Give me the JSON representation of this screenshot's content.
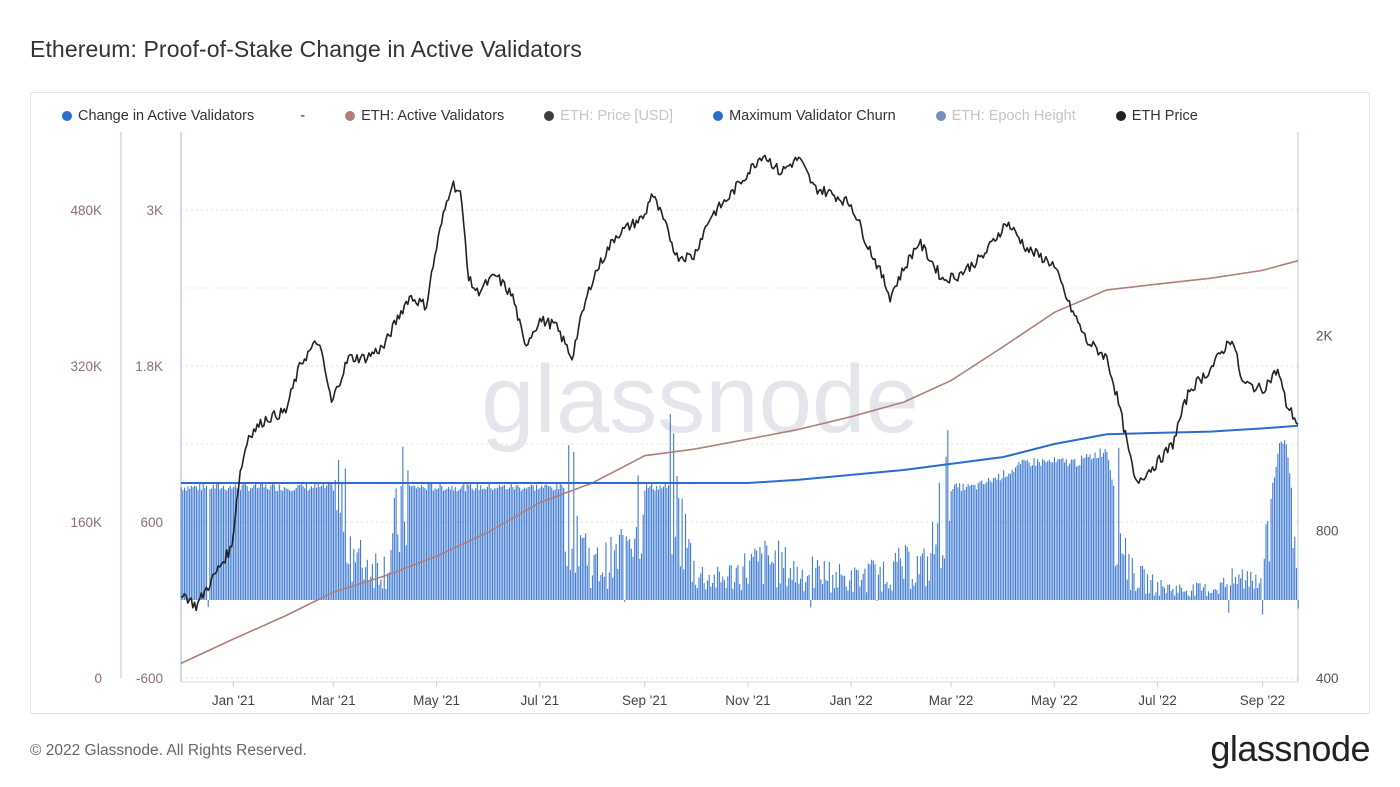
{
  "page": {
    "title": "Ethereum: Proof-of-Stake Change in Active Validators",
    "footer": "© 2022 Glassnode. All Rights Reserved.",
    "brand": "glassnode",
    "watermark": "glassnode"
  },
  "legend": [
    {
      "label": "Change in Active Validators",
      "color": "#2a6ccf",
      "muted": false,
      "icon": "dot"
    },
    {
      "label": "-",
      "color": "",
      "muted": false,
      "icon": "none"
    },
    {
      "label": "ETH: Active Validators",
      "color": "#b07f7a",
      "muted": false,
      "icon": "dot"
    },
    {
      "label": "ETH: Price [USD]",
      "color": "#333333",
      "muted": true,
      "icon": "dot"
    },
    {
      "label": "Maximum Validator Churn",
      "color": "#2a6ccf",
      "muted": false,
      "icon": "dot"
    },
    {
      "label": "ETH: Epoch Height",
      "color": "#6e89b6",
      "muted": true,
      "icon": "dot"
    },
    {
      "label": "ETH Price",
      "color": "#222222",
      "muted": false,
      "icon": "dot"
    }
  ],
  "chart_data": {
    "type": "line",
    "x_range": [
      "2020-12-01",
      "2022-09-22"
    ],
    "x_ticks": [
      "Jan '21",
      "Mar '21",
      "May '21",
      "Jul '21",
      "Sep '21",
      "Nov '21",
      "Jan '22",
      "Mar '22",
      "May '22",
      "Jul '22",
      "Sep '22"
    ],
    "axes": {
      "validators_axis": {
        "ticks": [
          "0",
          "160K",
          "320K",
          "480K"
        ],
        "tick_values": [
          0,
          160000,
          320000,
          480000
        ],
        "range": [
          0,
          560000
        ]
      },
      "change_axis": {
        "ticks": [
          "-600",
          "600",
          "1.8K",
          "3K"
        ],
        "tick_values": [
          -600,
          600,
          1800,
          3000
        ],
        "range": [
          -600,
          3600
        ]
      },
      "price_axis": {
        "ticks": [
          "400",
          "800",
          "2K"
        ],
        "tick_values": [
          400,
          800,
          2000
        ],
        "scale": "log",
        "range": [
          400,
          5200
        ]
      }
    },
    "series": [
      {
        "name": "ETH: Active Validators",
        "color": "#b07f7a",
        "axis": "validators_axis",
        "points": [
          [
            "2020-12-01",
            15000
          ],
          [
            "2021-01-01",
            40000
          ],
          [
            "2021-02-01",
            64000
          ],
          [
            "2021-03-01",
            88000
          ],
          [
            "2021-04-01",
            105000
          ],
          [
            "2021-05-01",
            125000
          ],
          [
            "2021-06-01",
            150000
          ],
          [
            "2021-07-01",
            180000
          ],
          [
            "2021-08-01",
            200000
          ],
          [
            "2021-09-01",
            228000
          ],
          [
            "2021-10-01",
            235000
          ],
          [
            "2021-11-01",
            245000
          ],
          [
            "2021-12-01",
            255000
          ],
          [
            "2022-01-01",
            268000
          ],
          [
            "2022-02-01",
            283000
          ],
          [
            "2022-03-01",
            305000
          ],
          [
            "2022-04-01",
            340000
          ],
          [
            "2022-05-01",
            375000
          ],
          [
            "2022-06-01",
            398000
          ],
          [
            "2022-07-01",
            404000
          ],
          [
            "2022-08-01",
            410000
          ],
          [
            "2022-09-01",
            418000
          ],
          [
            "2022-09-22",
            428000
          ]
        ]
      },
      {
        "name": "Maximum Validator Churn",
        "color": "#2a6ccf",
        "axis": "change_axis",
        "points": [
          [
            "2020-12-01",
            900
          ],
          [
            "2021-11-01",
            900
          ],
          [
            "2021-12-01",
            925
          ],
          [
            "2022-02-01",
            1000
          ],
          [
            "2022-04-01",
            1100
          ],
          [
            "2022-05-01",
            1200
          ],
          [
            "2022-06-01",
            1275
          ],
          [
            "2022-07-01",
            1285
          ],
          [
            "2022-08-01",
            1295
          ],
          [
            "2022-09-01",
            1320
          ],
          [
            "2022-09-22",
            1340
          ]
        ]
      },
      {
        "name": "ETH Price",
        "color": "#222222",
        "axis": "price_axis",
        "points": [
          [
            "2020-12-01",
            600
          ],
          [
            "2020-12-10",
            560
          ],
          [
            "2020-12-20",
            640
          ],
          [
            "2020-12-31",
            740
          ],
          [
            "2021-01-05",
            1050
          ],
          [
            "2021-01-10",
            1250
          ],
          [
            "2021-01-20",
            1350
          ],
          [
            "2021-02-01",
            1400
          ],
          [
            "2021-02-10",
            1760
          ],
          [
            "2021-02-20",
            1950
          ],
          [
            "2021-02-28",
            1450
          ],
          [
            "2021-03-10",
            1800
          ],
          [
            "2021-03-20",
            1800
          ],
          [
            "2021-03-31",
            1900
          ],
          [
            "2021-04-15",
            2400
          ],
          [
            "2021-04-25",
            2300
          ],
          [
            "2021-05-10",
            4100
          ],
          [
            "2021-05-15",
            3900
          ],
          [
            "2021-05-20",
            2600
          ],
          [
            "2021-05-25",
            2450
          ],
          [
            "2021-06-05",
            2650
          ],
          [
            "2021-06-15",
            2400
          ],
          [
            "2021-06-22",
            1900
          ],
          [
            "2021-07-01",
            2150
          ],
          [
            "2021-07-10",
            2100
          ],
          [
            "2021-07-20",
            1800
          ],
          [
            "2021-08-01",
            2600
          ],
          [
            "2021-08-15",
            3200
          ],
          [
            "2021-09-01",
            3500
          ],
          [
            "2021-09-05",
            3900
          ],
          [
            "2021-09-20",
            2900
          ],
          [
            "2021-09-30",
            2900
          ],
          [
            "2021-10-10",
            3500
          ],
          [
            "2021-10-20",
            3800
          ],
          [
            "2021-11-01",
            4300
          ],
          [
            "2021-11-10",
            4700
          ],
          [
            "2021-11-20",
            4300
          ],
          [
            "2021-12-01",
            4600
          ],
          [
            "2021-12-10",
            4000
          ],
          [
            "2021-12-20",
            3900
          ],
          [
            "2022-01-01",
            3700
          ],
          [
            "2022-01-10",
            3100
          ],
          [
            "2022-01-24",
            2400
          ],
          [
            "2022-02-10",
            3100
          ],
          [
            "2022-02-24",
            2600
          ],
          [
            "2022-03-05",
            2650
          ],
          [
            "2022-03-20",
            2900
          ],
          [
            "2022-04-03",
            3400
          ],
          [
            "2022-04-15",
            3000
          ],
          [
            "2022-04-30",
            2800
          ],
          [
            "2022-05-10",
            2300
          ],
          [
            "2022-05-20",
            1950
          ],
          [
            "2022-06-01",
            1800
          ],
          [
            "2022-06-13",
            1200
          ],
          [
            "2022-06-18",
            1000
          ],
          [
            "2022-07-01",
            1100
          ],
          [
            "2022-07-10",
            1200
          ],
          [
            "2022-07-20",
            1550
          ],
          [
            "2022-08-01",
            1700
          ],
          [
            "2022-08-14",
            1980
          ],
          [
            "2022-08-20",
            1600
          ],
          [
            "2022-09-01",
            1550
          ],
          [
            "2022-09-10",
            1700
          ],
          [
            "2022-09-15",
            1450
          ],
          [
            "2022-09-22",
            1320
          ]
        ]
      },
      {
        "name": "Change in Active Validators",
        "color": "#2a6ccf",
        "axis": "change_axis",
        "type": "bar",
        "points": [
          [
            "2020-12-01",
            900
          ],
          [
            "2020-12-15",
            900
          ],
          [
            "2021-01-01",
            900
          ],
          [
            "2021-01-15",
            900
          ],
          [
            "2021-02-01",
            900
          ],
          [
            "2021-02-15",
            900
          ],
          [
            "2021-03-01",
            900
          ],
          [
            "2021-03-15",
            300
          ],
          [
            "2021-04-01",
            250
          ],
          [
            "2021-04-15",
            900
          ],
          [
            "2021-05-01",
            900
          ],
          [
            "2021-05-15",
            900
          ],
          [
            "2021-06-01",
            900
          ],
          [
            "2021-06-15",
            900
          ],
          [
            "2021-07-01",
            900
          ],
          [
            "2021-07-15",
            900
          ],
          [
            "2021-08-01",
            250
          ],
          [
            "2021-08-15",
            300
          ],
          [
            "2021-09-01",
            900
          ],
          [
            "2021-09-15",
            900
          ],
          [
            "2021-10-01",
            200
          ],
          [
            "2021-10-15",
            150
          ],
          [
            "2021-11-01",
            250
          ],
          [
            "2021-11-15",
            300
          ],
          [
            "2021-12-01",
            200
          ],
          [
            "2021-12-15",
            200
          ],
          [
            "2022-01-01",
            150
          ],
          [
            "2022-01-15",
            200
          ],
          [
            "2022-02-01",
            250
          ],
          [
            "2022-02-15",
            250
          ],
          [
            "2022-03-01",
            900
          ],
          [
            "2022-03-15",
            900
          ],
          [
            "2022-04-01",
            1000
          ],
          [
            "2022-04-15",
            1100
          ],
          [
            "2022-05-01",
            1100
          ],
          [
            "2022-05-15",
            1100
          ],
          [
            "2022-06-01",
            1200
          ],
          [
            "2022-06-15",
            200
          ],
          [
            "2022-07-01",
            100
          ],
          [
            "2022-07-15",
            80
          ],
          [
            "2022-08-01",
            80
          ],
          [
            "2022-08-15",
            150
          ],
          [
            "2022-09-01",
            200
          ],
          [
            "2022-09-10",
            1200
          ],
          [
            "2022-09-15",
            1250
          ],
          [
            "2022-09-22",
            400
          ]
        ]
      }
    ]
  }
}
